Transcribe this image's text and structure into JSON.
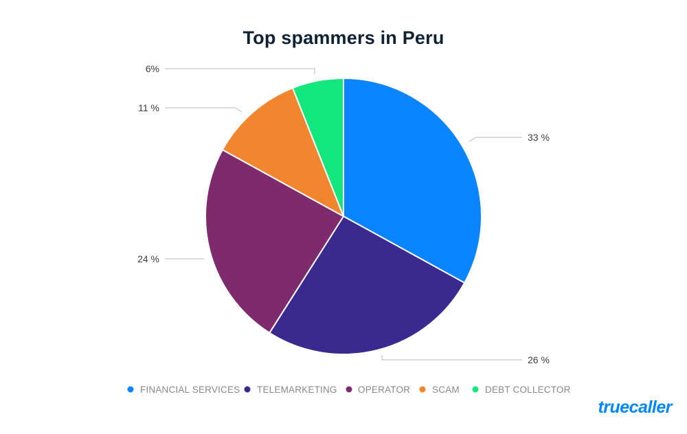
{
  "chart_data": {
    "type": "pie",
    "title": "Top spammers in Peru",
    "start_angle_deg": 0,
    "direction": "clockwise",
    "slices": [
      {
        "name": "FINANCIAL SERVICES",
        "value": 33,
        "label": "33 %",
        "color": "#0a84ff"
      },
      {
        "name": "TELEMARKETING",
        "value": 26,
        "label": "26 %",
        "color": "#3a2a8f"
      },
      {
        "name": "OPERATOR",
        "value": 24,
        "label": "24 %",
        "color": "#7e2a6f"
      },
      {
        "name": "SCAM",
        "value": 11,
        "label": "11 %",
        "color": "#f2862e"
      },
      {
        "name": "DEBT COLLECTOR",
        "value": 6,
        "label": "6%",
        "color": "#11e77c"
      }
    ],
    "legend_position": "bottom"
  },
  "brand": {
    "logo_text": "truecaller",
    "color": "#0087ff"
  }
}
